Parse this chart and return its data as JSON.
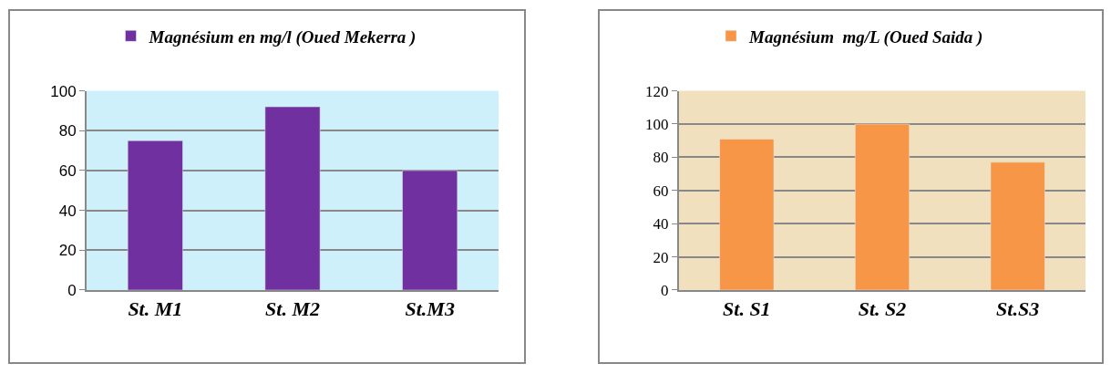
{
  "chart_data": [
    {
      "type": "bar",
      "categories": [
        "St. M1",
        "St. M2",
        "St.M3"
      ],
      "series": [
        {
          "name": "Magnésium en mg/l (Oued Mekerra )",
          "color": "#7030a0",
          "values": [
            75,
            92,
            60
          ]
        }
      ],
      "ylim": [
        0,
        100
      ],
      "yticks": [
        0,
        20,
        40,
        60,
        80,
        100
      ],
      "grid": "y",
      "legend": "top"
    },
    {
      "type": "bar",
      "categories": [
        "St. S1",
        "St. S2",
        "St.S3"
      ],
      "series": [
        {
          "name": "Magnésium  mg/L (Oued Saida )",
          "color": "#f79646",
          "values": [
            91,
            100,
            77
          ]
        }
      ],
      "ylim": [
        0,
        120
      ],
      "yticks": [
        0,
        20,
        40,
        60,
        80,
        100,
        120
      ],
      "grid": "y",
      "legend": "top"
    }
  ]
}
